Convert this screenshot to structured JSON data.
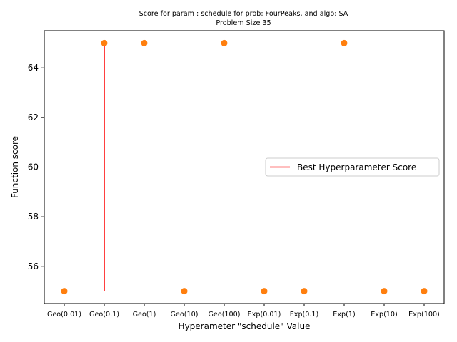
{
  "chart_data": {
    "type": "scatter",
    "title_line1": "Score for param : schedule for prob: FourPeaks, and algo: SA",
    "title_line2": "Problem Size 35",
    "xlabel": "Hyperameter \"schedule\" Value",
    "ylabel": "Function score",
    "categories": [
      "Geo(0.01)",
      "Geo(0.1)",
      "Geo(1)",
      "Geo(10)",
      "Geo(100)",
      "Exp(0.01)",
      "Exp(0.1)",
      "Exp(1)",
      "Exp(10)",
      "Exp(100)"
    ],
    "values": [
      55,
      65,
      65,
      55,
      65,
      55,
      55,
      65,
      55,
      55
    ],
    "ylim": [
      54.5,
      65.5
    ],
    "yticks": [
      56,
      58,
      60,
      62,
      64
    ],
    "point_color": "#ff7f0e",
    "best_line": {
      "label": "Best Hyperparameter Score",
      "category_index": 1,
      "y_from": 55,
      "y_to": 65,
      "color": "#ff0000"
    },
    "legend_position": "center-right",
    "grid": false
  }
}
